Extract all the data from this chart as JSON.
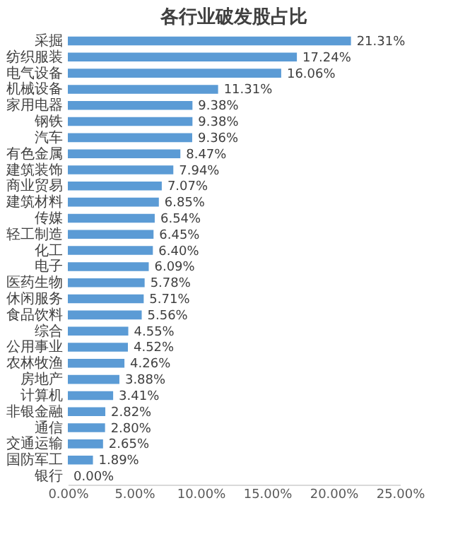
{
  "chart_data": {
    "type": "bar",
    "orientation": "horizontal",
    "title": "各行业破发股占比",
    "categories": [
      "采掘",
      "纺织服装",
      "电气设备",
      "机械设备",
      "家用电器",
      "钢铁",
      "汽车",
      "有色金属",
      "建筑装饰",
      "商业贸易",
      "建筑材料",
      "传媒",
      "轻工制造",
      "化工",
      "电子",
      "医药生物",
      "休闲服务",
      "食品饮料",
      "综合",
      "公用事业",
      "农林牧渔",
      "房地产",
      "计算机",
      "非银金融",
      "通信",
      "交通运输",
      "国防军工",
      "银行"
    ],
    "values": [
      21.31,
      17.24,
      16.06,
      11.31,
      9.38,
      9.38,
      9.36,
      8.47,
      7.94,
      7.07,
      6.85,
      6.54,
      6.45,
      6.4,
      6.09,
      5.78,
      5.71,
      5.56,
      4.55,
      4.52,
      4.26,
      3.88,
      3.41,
      2.82,
      2.8,
      2.65,
      1.89,
      0.0
    ],
    "value_labels": [
      "21.31%",
      "17.24%",
      "16.06%",
      "11.31%",
      "9.38%",
      "9.38%",
      "9.36%",
      "8.47%",
      "7.94%",
      "7.07%",
      "6.85%",
      "6.54%",
      "6.45%",
      "6.40%",
      "6.09%",
      "5.78%",
      "5.71%",
      "5.56%",
      "4.55%",
      "4.52%",
      "4.26%",
      "3.88%",
      "3.41%",
      "2.82%",
      "2.80%",
      "2.65%",
      "1.89%",
      "0.00%"
    ],
    "color": "#5b9bd5",
    "xlim": [
      0,
      25
    ],
    "xticks": [
      {
        "value": 0,
        "label": "0.00%"
      },
      {
        "value": 5,
        "label": "5.00%"
      },
      {
        "value": 10,
        "label": "10.00%"
      },
      {
        "value": 15,
        "label": "15.00%"
      },
      {
        "value": 20,
        "label": "20.00%"
      },
      {
        "value": 25,
        "label": "25.00%"
      }
    ],
    "grid": false
  }
}
